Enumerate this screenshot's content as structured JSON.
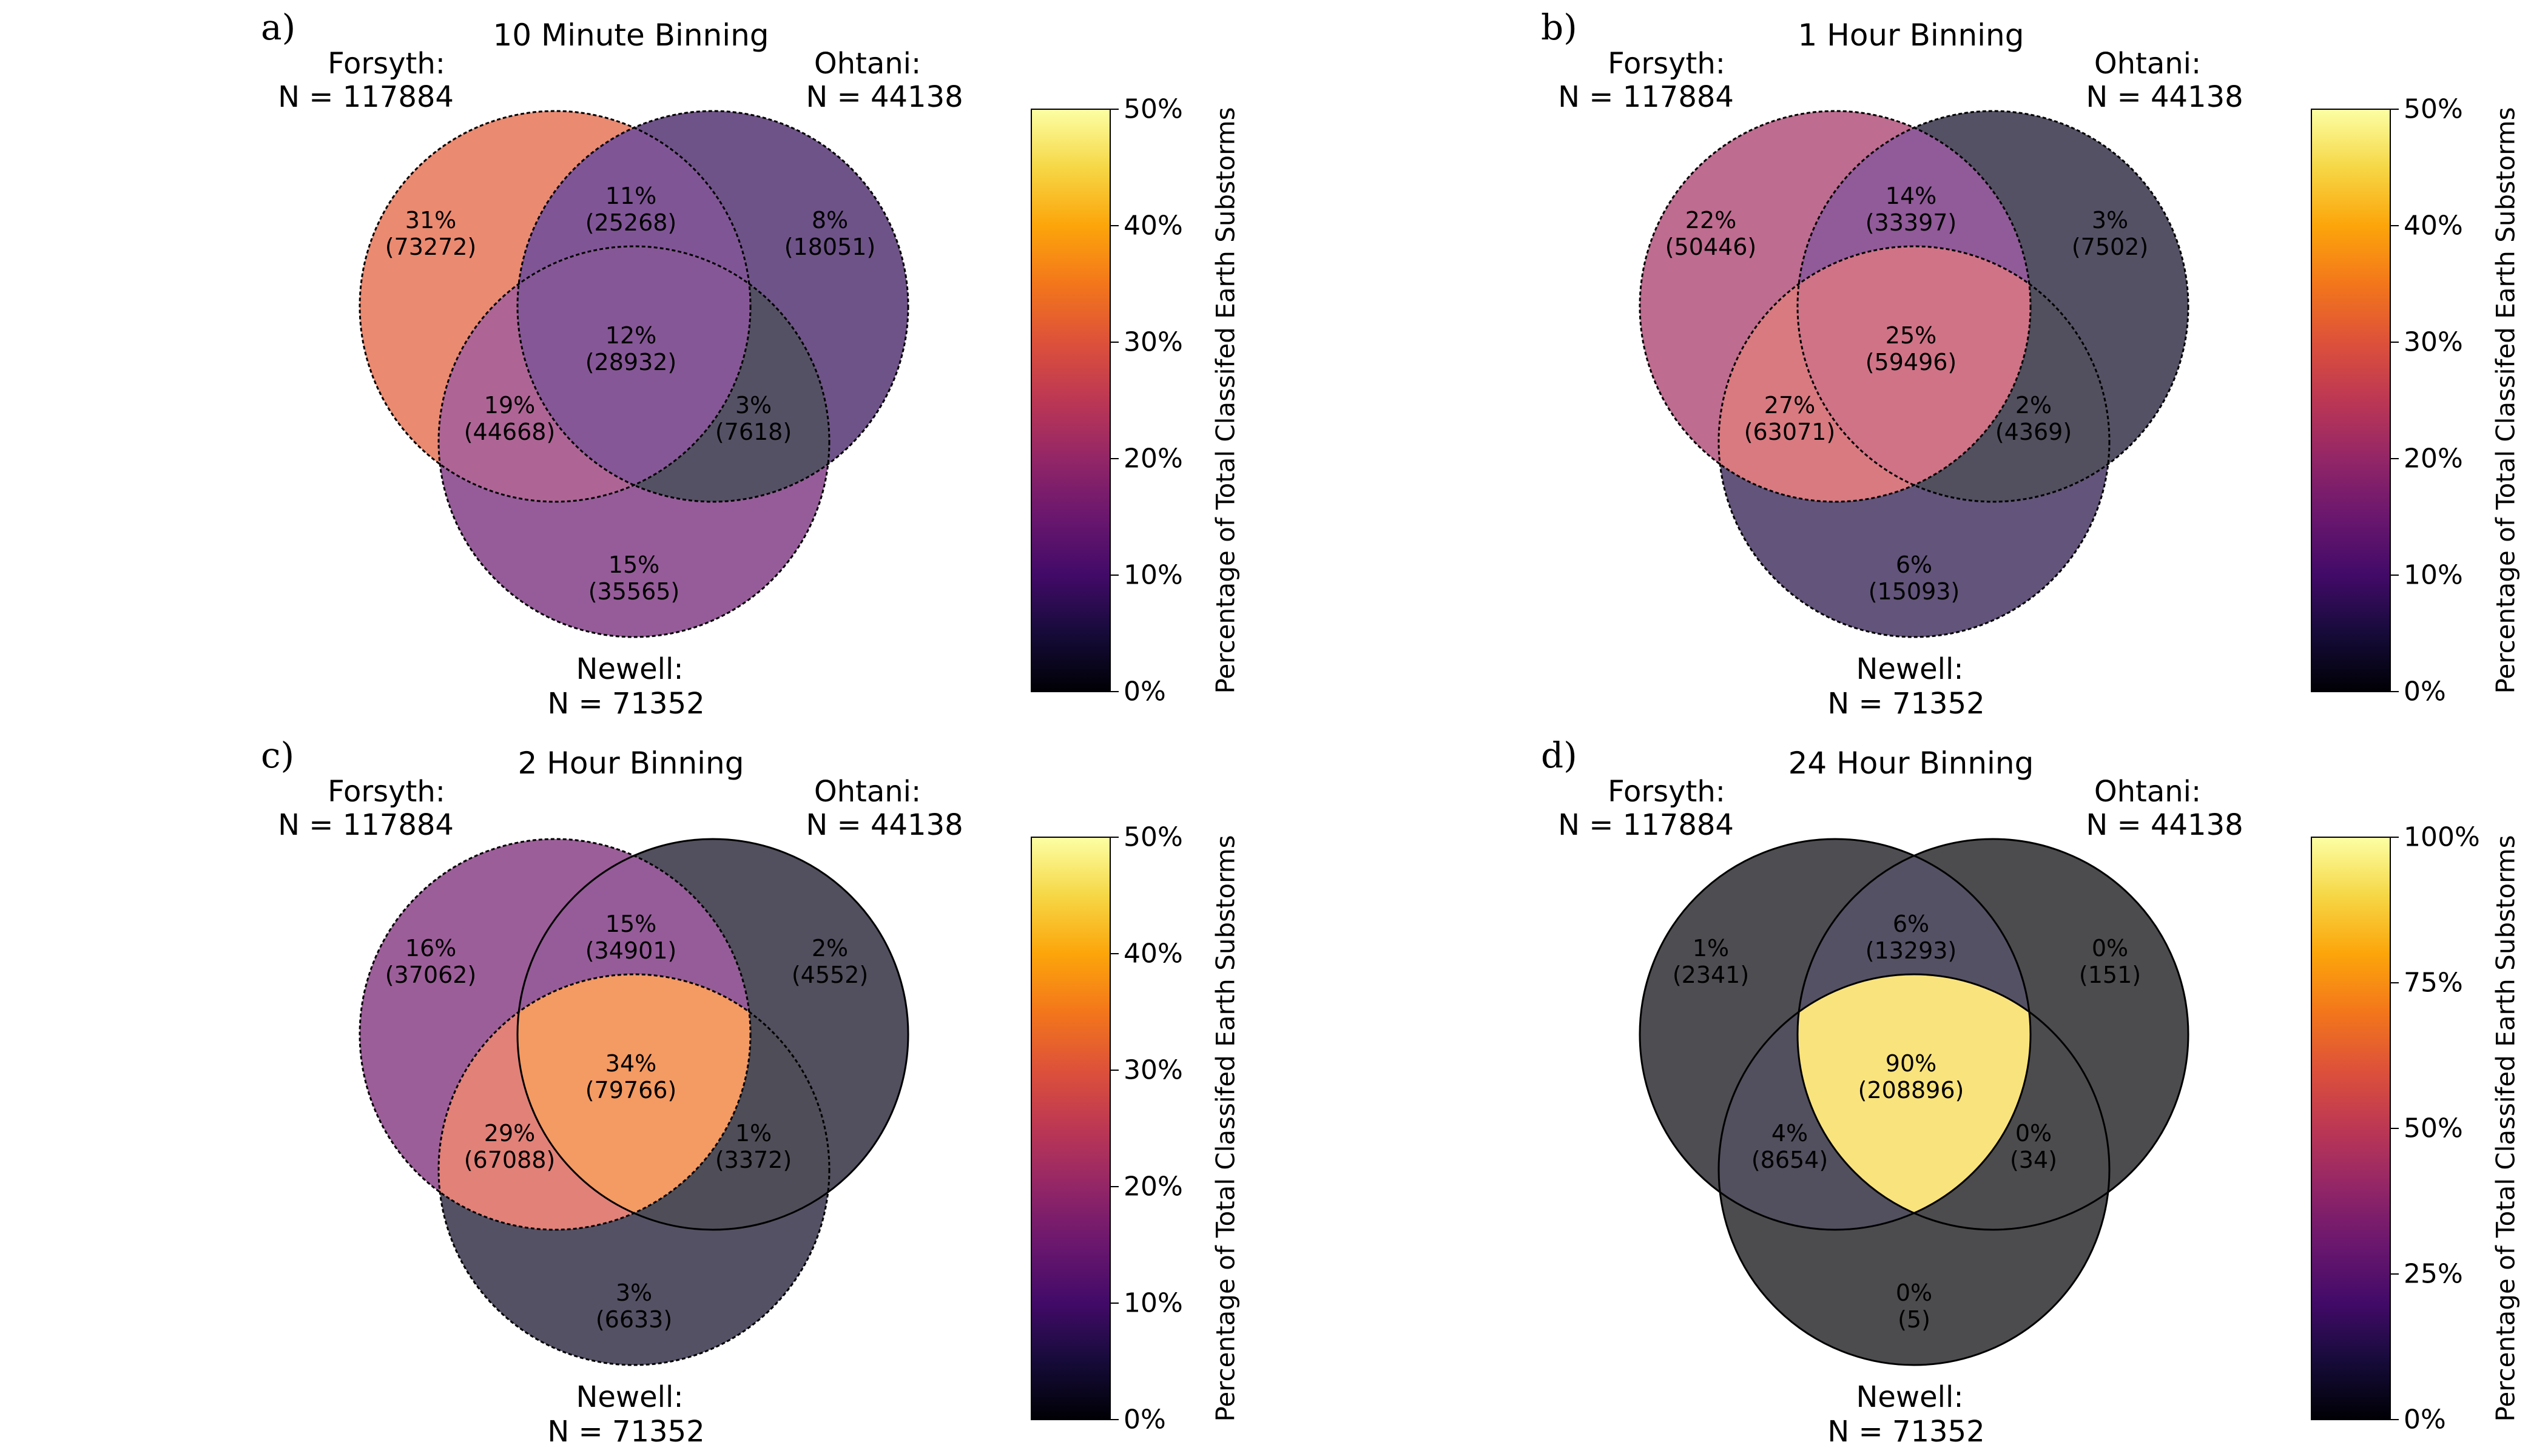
{
  "chart_data": [
    {
      "type": "venn",
      "panel_label": "a)",
      "title": "10 Minute Binning",
      "sets": [
        {
          "label": "Forsyth:",
          "n_label": "N = 117884"
        },
        {
          "label": "Ohtani:",
          "n_label": "N = 44138"
        },
        {
          "label": "Newell:",
          "n_label": "N = 71352"
        }
      ],
      "regions": [
        {
          "key": "forsyth_only",
          "percent": 31,
          "pct_label": "31%",
          "count_label": "(73272)"
        },
        {
          "key": "ohtani_only",
          "percent": 8,
          "pct_label": "8%",
          "count_label": "(18051)"
        },
        {
          "key": "newell_only",
          "percent": 15,
          "pct_label": "15%",
          "count_label": "(35565)"
        },
        {
          "key": "forsyth_ohtani",
          "percent": 11,
          "pct_label": "11%",
          "count_label": "(25268)"
        },
        {
          "key": "forsyth_newell",
          "percent": 19,
          "pct_label": "19%",
          "count_label": "(44668)"
        },
        {
          "key": "ohtani_newell",
          "percent": 3,
          "pct_label": "3%",
          "count_label": "(7618)"
        },
        {
          "key": "all_three",
          "percent": 12,
          "pct_label": "12%",
          "count_label": "(28932)"
        }
      ],
      "colorbar": {
        "label": "Percentage of Total Classifed Earth Substorms",
        "range": [
          0,
          50
        ],
        "ticks": [
          "0%",
          "10%",
          "20%",
          "30%",
          "40%",
          "50%"
        ],
        "colormap": "inferno"
      }
    },
    {
      "type": "venn",
      "panel_label": "b)",
      "title": "1 Hour Binning",
      "sets": [
        {
          "label": "Forsyth:",
          "n_label": "N = 117884"
        },
        {
          "label": "Ohtani:",
          "n_label": "N = 44138"
        },
        {
          "label": "Newell:",
          "n_label": "N = 71352"
        }
      ],
      "regions": [
        {
          "key": "forsyth_only",
          "percent": 22,
          "pct_label": "22%",
          "count_label": "(50446)"
        },
        {
          "key": "ohtani_only",
          "percent": 3,
          "pct_label": "3%",
          "count_label": "(7502)"
        },
        {
          "key": "newell_only",
          "percent": 6,
          "pct_label": "6%",
          "count_label": "(15093)"
        },
        {
          "key": "forsyth_ohtani",
          "percent": 14,
          "pct_label": "14%",
          "count_label": "(33397)"
        },
        {
          "key": "forsyth_newell",
          "percent": 27,
          "pct_label": "27%",
          "count_label": "(63071)"
        },
        {
          "key": "ohtani_newell",
          "percent": 2,
          "pct_label": "2%",
          "count_label": "(4369)"
        },
        {
          "key": "all_three",
          "percent": 25,
          "pct_label": "25%",
          "count_label": "(59496)"
        }
      ],
      "colorbar": {
        "label": "Percentage of Total Classifed Earth Substorms",
        "range": [
          0,
          50
        ],
        "ticks": [
          "0%",
          "10%",
          "20%",
          "30%",
          "40%",
          "50%"
        ],
        "colormap": "inferno"
      }
    },
    {
      "type": "venn",
      "panel_label": "c)",
      "title": "2 Hour Binning",
      "sets": [
        {
          "label": "Forsyth:",
          "n_label": "N = 117884"
        },
        {
          "label": "Ohtani:",
          "n_label": "N = 44138"
        },
        {
          "label": "Newell:",
          "n_label": "N = 71352"
        }
      ],
      "regions": [
        {
          "key": "forsyth_only",
          "percent": 16,
          "pct_label": "16%",
          "count_label": "(37062)"
        },
        {
          "key": "ohtani_only",
          "percent": 2,
          "pct_label": "2%",
          "count_label": "(4552)"
        },
        {
          "key": "newell_only",
          "percent": 3,
          "pct_label": "3%",
          "count_label": "(6633)"
        },
        {
          "key": "forsyth_ohtani",
          "percent": 15,
          "pct_label": "15%",
          "count_label": "(34901)"
        },
        {
          "key": "forsyth_newell",
          "percent": 29,
          "pct_label": "29%",
          "count_label": "(67088)"
        },
        {
          "key": "ohtani_newell",
          "percent": 1,
          "pct_label": "1%",
          "count_label": "(3372)"
        },
        {
          "key": "all_three",
          "percent": 34,
          "pct_label": "34%",
          "count_label": "(79766)"
        }
      ],
      "colorbar": {
        "label": "Percentage of Total Classifed Earth Substorms",
        "range": [
          0,
          50
        ],
        "ticks": [
          "0%",
          "10%",
          "20%",
          "30%",
          "40%",
          "50%"
        ],
        "colormap": "inferno"
      }
    },
    {
      "type": "venn",
      "panel_label": "d)",
      "title": "24 Hour Binning",
      "sets": [
        {
          "label": "Forsyth:",
          "n_label": "N = 117884"
        },
        {
          "label": "Ohtani:",
          "n_label": "N = 44138"
        },
        {
          "label": "Newell:",
          "n_label": "N = 71352"
        }
      ],
      "regions": [
        {
          "key": "forsyth_only",
          "percent": 1,
          "pct_label": "1%",
          "count_label": "(2341)"
        },
        {
          "key": "ohtani_only",
          "percent": 0,
          "pct_label": "0%",
          "count_label": "(151)"
        },
        {
          "key": "newell_only",
          "percent": 0,
          "pct_label": "0%",
          "count_label": "(5)"
        },
        {
          "key": "forsyth_ohtani",
          "percent": 6,
          "pct_label": "6%",
          "count_label": "(13293)"
        },
        {
          "key": "forsyth_newell",
          "percent": 4,
          "pct_label": "4%",
          "count_label": "(8654)"
        },
        {
          "key": "ohtani_newell",
          "percent": 0,
          "pct_label": "0%",
          "count_label": "(34)"
        },
        {
          "key": "all_three",
          "percent": 90,
          "pct_label": "90%",
          "count_label": "(208896)"
        }
      ],
      "colorbar": {
        "label": "Percentage of Total Classifed Earth Substorms",
        "range": [
          0,
          100
        ],
        "ticks": [
          "0%",
          "25%",
          "50%",
          "75%",
          "100%"
        ],
        "colormap": "inferno"
      }
    }
  ]
}
